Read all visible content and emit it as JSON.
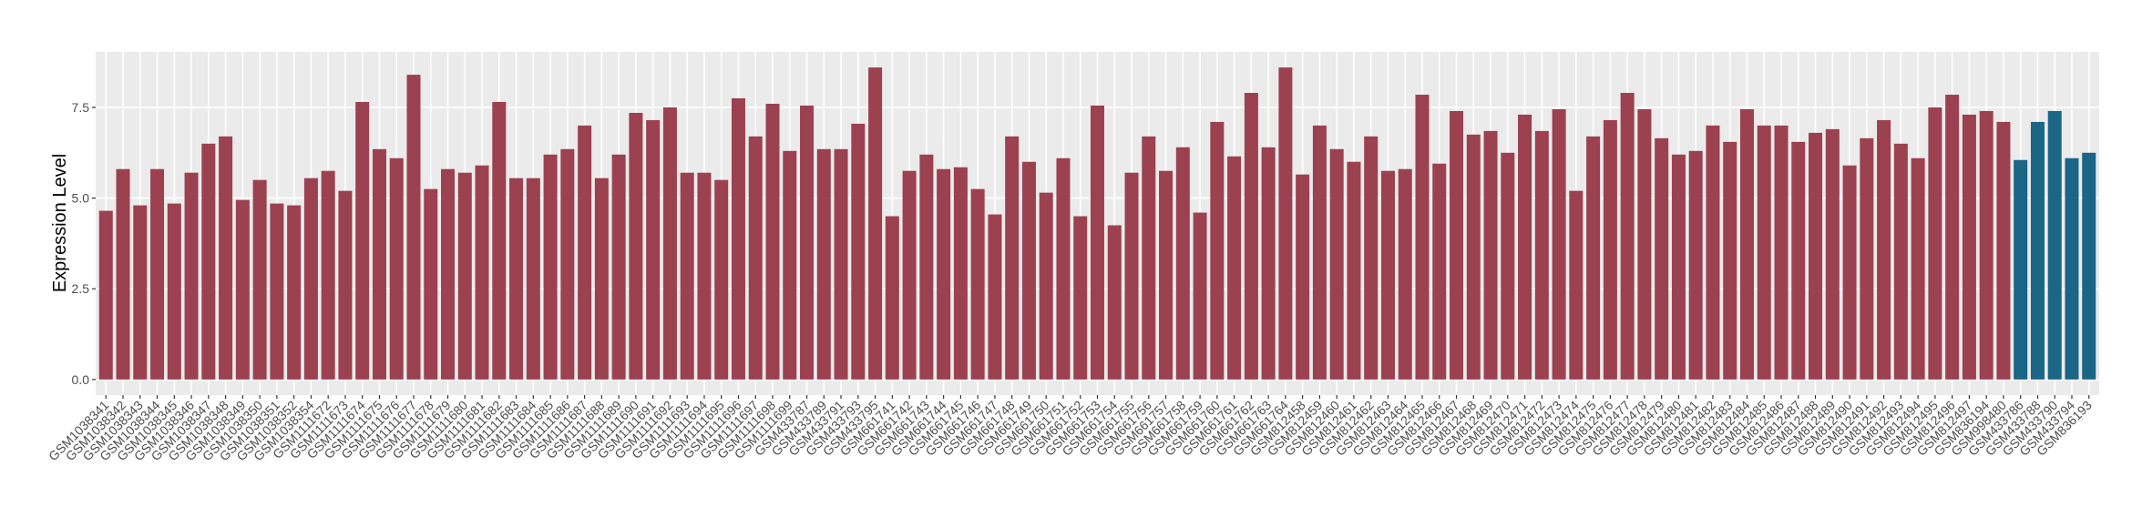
{
  "chart_data": {
    "type": "bar",
    "y_label": "Expression Level",
    "categories": [
      "GSM1038341",
      "GSM1038342",
      "GSM1038343",
      "GSM1038344",
      "GSM1038345",
      "GSM1038346",
      "GSM1038347",
      "GSM1038348",
      "GSM1038349",
      "GSM1038350",
      "GSM1038351",
      "GSM1038352",
      "GSM1038354",
      "GSM1111672",
      "GSM1111673",
      "GSM1111674",
      "GSM1111675",
      "GSM1111676",
      "GSM1111677",
      "GSM1111678",
      "GSM1111679",
      "GSM1111680",
      "GSM1111681",
      "GSM1111682",
      "GSM1111683",
      "GSM1111684",
      "GSM1111685",
      "GSM1111686",
      "GSM1111687",
      "GSM1111688",
      "GSM1111689",
      "GSM1111690",
      "GSM1111691",
      "GSM1111692",
      "GSM1111693",
      "GSM1111694",
      "GSM1111695",
      "GSM1111696",
      "GSM1111697",
      "GSM1111698",
      "GSM1111699",
      "GSM433787",
      "GSM433789",
      "GSM433791",
      "GSM433793",
      "GSM433795",
      "GSM661741",
      "GSM661742",
      "GSM661743",
      "GSM661744",
      "GSM661745",
      "GSM661746",
      "GSM661747",
      "GSM661748",
      "GSM661749",
      "GSM661750",
      "GSM661751",
      "GSM661752",
      "GSM661753",
      "GSM661754",
      "GSM661755",
      "GSM661756",
      "GSM661757",
      "GSM661758",
      "GSM661759",
      "GSM661760",
      "GSM661761",
      "GSM661762",
      "GSM661763",
      "GSM661764",
      "GSM812458",
      "GSM812459",
      "GSM812460",
      "GSM812461",
      "GSM812462",
      "GSM812463",
      "GSM812464",
      "GSM812465",
      "GSM812466",
      "GSM812467",
      "GSM812468",
      "GSM812469",
      "GSM812470",
      "GSM812471",
      "GSM812472",
      "GSM812473",
      "GSM812474",
      "GSM812475",
      "GSM812476",
      "GSM812477",
      "GSM812478",
      "GSM812479",
      "GSM812480",
      "GSM812481",
      "GSM812482",
      "GSM812483",
      "GSM812484",
      "GSM812485",
      "GSM812486",
      "GSM812487",
      "GSM812488",
      "GSM812489",
      "GSM812490",
      "GSM812491",
      "GSM812492",
      "GSM812493",
      "GSM812494",
      "GSM812495",
      "GSM812496",
      "GSM812497",
      "GSM836194",
      "GSM998480",
      "GSM433786",
      "GSM433788",
      "GSM433790",
      "GSM433794",
      "GSM836193"
    ],
    "values": [
      4.65,
      5.8,
      4.8,
      5.8,
      4.85,
      5.7,
      6.5,
      6.7,
      4.95,
      5.5,
      4.85,
      4.8,
      5.55,
      5.75,
      5.2,
      7.65,
      6.35,
      6.1,
      8.4,
      5.25,
      5.8,
      5.7,
      5.9,
      7.65,
      5.55,
      5.55,
      6.2,
      6.35,
      7.0,
      5.55,
      6.2,
      7.35,
      7.15,
      7.5,
      5.7,
      5.7,
      5.5,
      7.75,
      6.7,
      7.6,
      6.3,
      7.55,
      6.35,
      6.35,
      7.05,
      8.6,
      4.5,
      5.75,
      6.2,
      5.8,
      5.85,
      5.25,
      4.55,
      6.7,
      6.0,
      5.15,
      6.1,
      4.5,
      7.55,
      4.25,
      5.7,
      6.7,
      5.75,
      6.4,
      4.6,
      7.1,
      6.15,
      7.9,
      6.4,
      8.6,
      5.65,
      7.0,
      6.35,
      6.0,
      6.7,
      5.75,
      5.8,
      7.85,
      5.95,
      7.4,
      6.75,
      6.85,
      6.25,
      7.3,
      6.85,
      7.45,
      5.2,
      6.7,
      7.15,
      7.9,
      7.45,
      6.65,
      6.2,
      6.3,
      7.0,
      6.55,
      7.45,
      7.0,
      7.0,
      6.55,
      6.8,
      6.9,
      5.9,
      6.65,
      7.15,
      6.5,
      6.1,
      7.5,
      7.85,
      7.3,
      7.4,
      7.1,
      6.05,
      7.1,
      7.4,
      6.1,
      6.25
    ],
    "bar_colors": [
      "#9c4150",
      "#9c4150",
      "#9c4150",
      "#9c4150",
      "#9c4150",
      "#9c4150",
      "#9c4150",
      "#9c4150",
      "#9c4150",
      "#9c4150",
      "#9c4150",
      "#9c4150",
      "#9c4150",
      "#9c4150",
      "#9c4150",
      "#9c4150",
      "#9c4150",
      "#9c4150",
      "#9c4150",
      "#9c4150",
      "#9c4150",
      "#9c4150",
      "#9c4150",
      "#9c4150",
      "#9c4150",
      "#9c4150",
      "#9c4150",
      "#9c4150",
      "#9c4150",
      "#9c4150",
      "#9c4150",
      "#9c4150",
      "#9c4150",
      "#9c4150",
      "#9c4150",
      "#9c4150",
      "#9c4150",
      "#9c4150",
      "#9c4150",
      "#9c4150",
      "#9c4150",
      "#9c4150",
      "#9c4150",
      "#9c4150",
      "#9c4150",
      "#9c4150",
      "#9c4150",
      "#9c4150",
      "#9c4150",
      "#9c4150",
      "#9c4150",
      "#9c4150",
      "#9c4150",
      "#9c4150",
      "#9c4150",
      "#9c4150",
      "#9c4150",
      "#9c4150",
      "#9c4150",
      "#9c4150",
      "#9c4150",
      "#9c4150",
      "#9c4150",
      "#9c4150",
      "#9c4150",
      "#9c4150",
      "#9c4150",
      "#9c4150",
      "#9c4150",
      "#9c4150",
      "#9c4150",
      "#9c4150",
      "#9c4150",
      "#9c4150",
      "#9c4150",
      "#9c4150",
      "#9c4150",
      "#9c4150",
      "#9c4150",
      "#9c4150",
      "#9c4150",
      "#9c4150",
      "#9c4150",
      "#9c4150",
      "#9c4150",
      "#9c4150",
      "#9c4150",
      "#9c4150",
      "#9c4150",
      "#9c4150",
      "#9c4150",
      "#9c4150",
      "#9c4150",
      "#9c4150",
      "#9c4150",
      "#9c4150",
      "#9c4150",
      "#9c4150",
      "#9c4150",
      "#9c4150",
      "#9c4150",
      "#9c4150",
      "#9c4150",
      "#9c4150",
      "#9c4150",
      "#9c4150",
      "#9c4150",
      "#9c4150",
      "#9c4150",
      "#9c4150",
      "#9c4150",
      "#9c4150",
      "#1b6586",
      "#1b6586",
      "#1b6586",
      "#1b6586",
      "#1b6586"
    ],
    "ylim": [
      -0.43,
      9.03
    ],
    "yticks": [
      {
        "value": 0,
        "label": "0.0"
      },
      2.5,
      {
        "value": 5,
        "label": "5.0"
      },
      7.5
    ],
    "grid": true
  }
}
